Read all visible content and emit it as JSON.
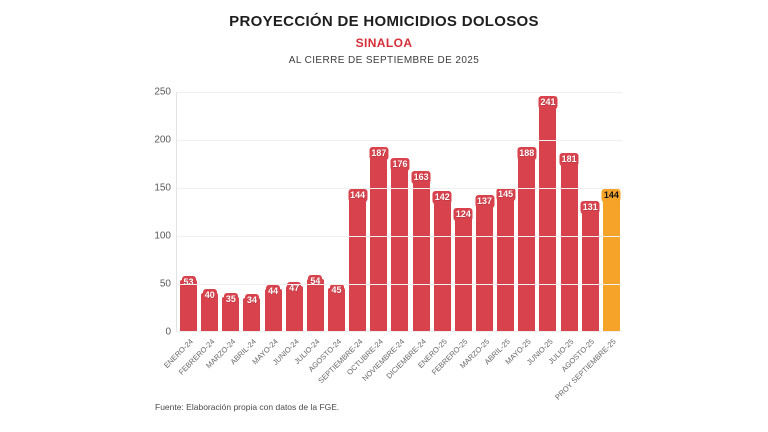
{
  "header": {
    "title": "PROYECCIÓN DE HOMICIDIOS DOLOSOS",
    "subtitle": "SINALOA",
    "caption": "AL CIERRE DE SEPTIEMBRE DE 2025"
  },
  "chart_data": {
    "type": "bar",
    "title": "PROYECCIÓN DE HOMICIDIOS DOLOSOS — SINALOA — AL CIERRE DE SEPTIEMBRE DE 2025",
    "xlabel": "",
    "ylabel": "",
    "categories": [
      "ENERO-24",
      "FEBRERO-24",
      "MARZO-24",
      "ABRIL-24",
      "MAYO-24",
      "JUNIO-24",
      "JULIO-24",
      "AGOSTO-24",
      "SEPTIEMBRE-24",
      "OCTUBRE-24",
      "NOVIEMBRE-24",
      "DICIEMBRE-24",
      "ENERO-25",
      "FEBRERO-25",
      "MARZO-25",
      "ABRIL-25",
      "MAYO-25",
      "JUNIO-25",
      "JULIO-25",
      "AGOSTO-25",
      "PROY SEPTIEMBRE-25"
    ],
    "values": [
      53,
      40,
      35,
      34,
      44,
      47,
      54,
      45,
      144,
      187,
      176,
      163,
      142,
      124,
      137,
      145,
      188,
      241,
      181,
      131,
      144
    ],
    "highlight_index": 20,
    "ylim": [
      0,
      250
    ],
    "yticks": [
      0,
      50,
      100,
      150,
      200,
      250
    ],
    "grid": true,
    "legend": "none",
    "colors": {
      "bar": "#d8424d",
      "highlight_bar": "#f5a329",
      "label_text": "#ffffff",
      "highlight_label_text": "#151515"
    }
  },
  "footer": {
    "source": "Fuente: Elaboración propia con datos de la FGE."
  }
}
